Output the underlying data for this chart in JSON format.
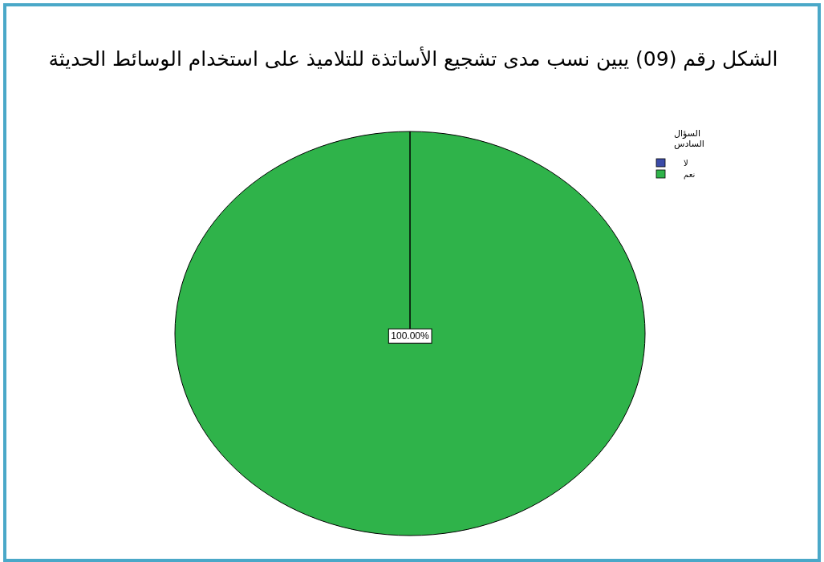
{
  "chart_data": {
    "type": "pie",
    "title": "الشكل رقم (09) يبين نسب مدى تشجيع الأساتذة للتلاميذ على استخدام الوسائط الحديثة",
    "legend_title": "السؤال السادس",
    "categories": [
      "لا",
      "نعم"
    ],
    "values": [
      0,
      100
    ],
    "colors": [
      "#3b4ba8",
      "#2fb34a"
    ],
    "value_labels": [
      null,
      "100.00%"
    ],
    "legend": "top right"
  }
}
